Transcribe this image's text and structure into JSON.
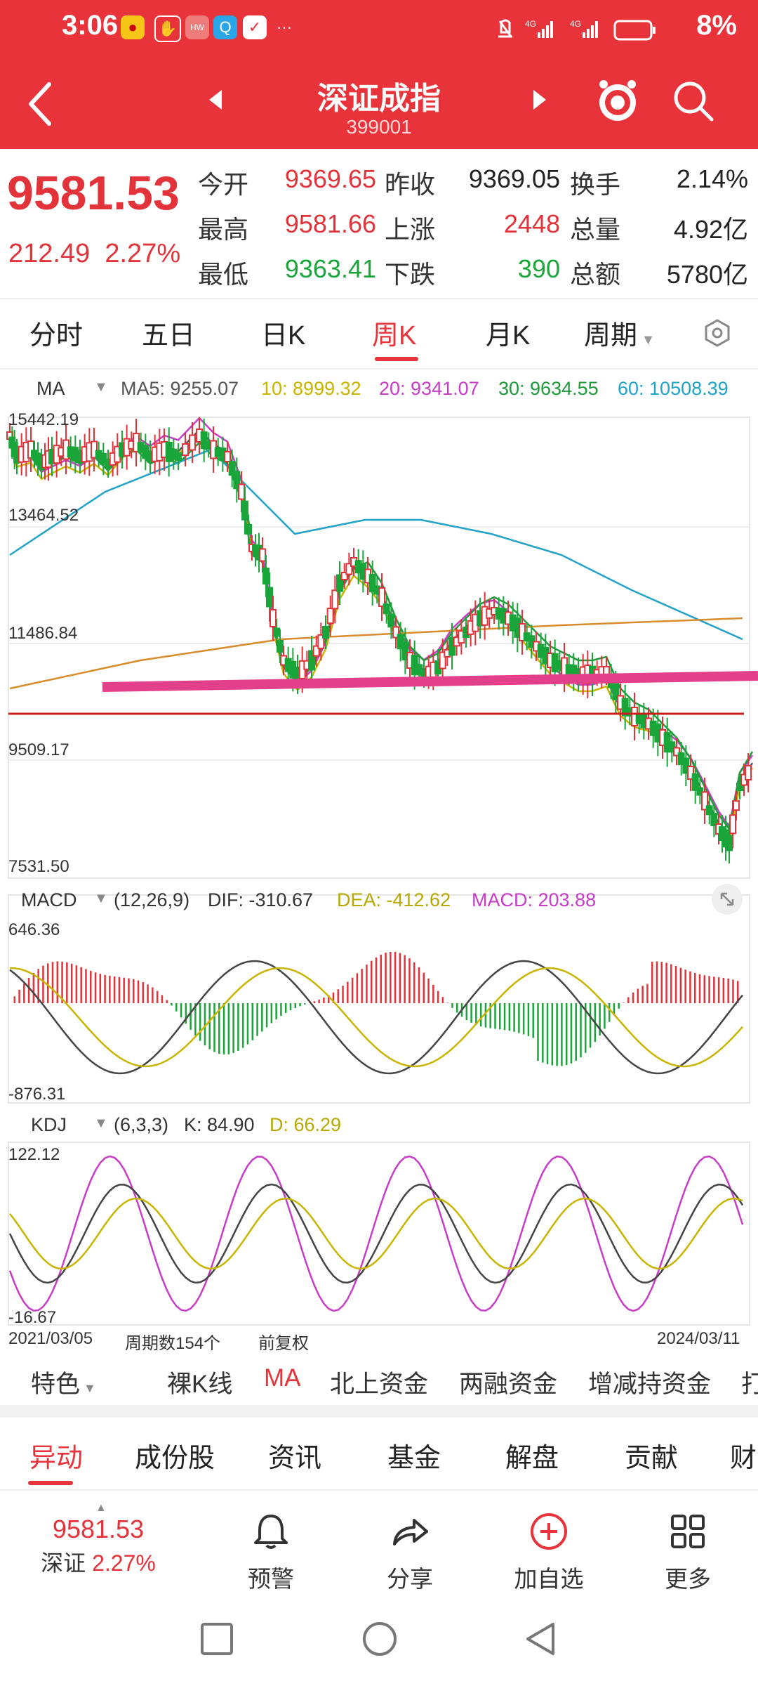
{
  "status": {
    "time": "3:06",
    "battery": "8%"
  },
  "header": {
    "title": "深证成指",
    "code": "399001"
  },
  "quote": {
    "price": "9581.53",
    "change": "212.49",
    "change_pct": "2.27%",
    "fields": [
      {
        "label": "今开",
        "value": "9369.65",
        "color": "red"
      },
      {
        "label": "昨收",
        "value": "9369.05",
        "color": "dark"
      },
      {
        "label": "换手",
        "value": "2.14%",
        "color": "dark"
      },
      {
        "label": "最高",
        "value": "9581.66",
        "color": "red"
      },
      {
        "label": "上涨",
        "value": "2448",
        "color": "red"
      },
      {
        "label": "总量",
        "value": "4.92亿",
        "color": "dark"
      },
      {
        "label": "最低",
        "value": "9363.41",
        "color": "green"
      },
      {
        "label": "下跌",
        "value": "390",
        "color": "green"
      },
      {
        "label": "总额",
        "value": "5780亿",
        "color": "dark"
      }
    ]
  },
  "period_tabs": [
    "分时",
    "五日",
    "日K",
    "周K",
    "月K",
    "周期"
  ],
  "active_period": "周K",
  "ma": {
    "name": "MA",
    "labels": [
      {
        "text": "MA5: 9255.07",
        "color": "#555555"
      },
      {
        "text": "10: 8999.32",
        "color": "#c9b400"
      },
      {
        "text": "20: 9341.07",
        "color": "#c83cc8"
      },
      {
        "text": "30: 9634.55",
        "color": "#1f9a3a"
      },
      {
        "text": "60: 10508.39",
        "color": "#21a3c8"
      }
    ],
    "axis": [
      "15442.19",
      "13464.52",
      "11486.84",
      "9509.17",
      "7531.50"
    ]
  },
  "macd": {
    "name": "MACD",
    "params": "(12,26,9)",
    "dif": "DIF: -310.67",
    "dea": "DEA: -412.62",
    "macd": "MACD: 203.88",
    "axis": [
      "646.36",
      "-876.31"
    ]
  },
  "kdj": {
    "name": "KDJ",
    "params": "(6,3,3)",
    "k": "K: 84.90",
    "d": "D: 66.29",
    "axis": [
      "122.12",
      "-16.67"
    ]
  },
  "footer_axis": {
    "start": "2021/03/05",
    "count": "周期数154个",
    "adj": "前复权",
    "end": "2024/03/11"
  },
  "indicator_tabs": [
    "特色",
    "裸K线",
    "MA",
    "北上资金",
    "两融资金",
    "增减持资金",
    "打"
  ],
  "bottom_tabs": [
    "异动",
    "成份股",
    "资讯",
    "基金",
    "解盘",
    "贡献",
    "财"
  ],
  "bottom_bar": {
    "price": "9581.53",
    "name": "深证",
    "pct": "2.27%",
    "items": [
      "预警",
      "分享",
      "加自选",
      "更多"
    ]
  },
  "colors": {
    "brand": "#e8333a",
    "up": "#e2323a",
    "down": "#19a53a"
  }
}
